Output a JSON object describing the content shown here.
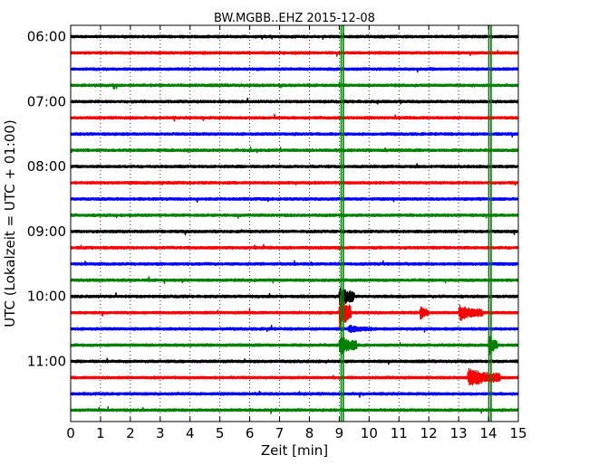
{
  "chart_data": {
    "type": "line",
    "title": "BW.MGBB..EHZ 2015-12-08",
    "xlabel": "Zeit  [min]",
    "ylabel": "UTC (Lokalzeit = UTC + 01:00)",
    "xlim": [
      0,
      15
    ],
    "x_ticks": [
      "0",
      "1",
      "2",
      "3",
      "4",
      "5",
      "6",
      "7",
      "8",
      "9",
      "10",
      "11",
      "12",
      "13",
      "14",
      "15"
    ],
    "y_tick_labels": [
      "06:00",
      "07:00",
      "08:00",
      "09:00",
      "10:00",
      "11:00"
    ],
    "grid": "vertical dotted at each minute",
    "trace_colors": [
      "#000000",
      "#ff0000",
      "#0000ff",
      "#008000"
    ],
    "trace_start_minutes": [
      360,
      375,
      390,
      405,
      420,
      435,
      450,
      465,
      480,
      495,
      510,
      525,
      540,
      555,
      570,
      585,
      600,
      615,
      630,
      645,
      660,
      675,
      690,
      705
    ],
    "trace_duration_min": 15,
    "event_markers": [
      {
        "minute": 9.1,
        "color": "#008000"
      },
      {
        "minute": 14.05,
        "color": "#008000"
      }
    ],
    "signals": [
      {
        "row": 16,
        "x_min": 9.0,
        "x_max": 9.5,
        "peak": 14
      },
      {
        "row": 17,
        "x_min": 9.0,
        "x_max": 9.4,
        "peak": 22
      },
      {
        "row": 17,
        "x_min": 11.7,
        "x_max": 12.0,
        "peak": 9
      },
      {
        "row": 17,
        "x_min": 13.0,
        "x_max": 13.8,
        "peak": 10
      },
      {
        "row": 18,
        "x_min": 9.3,
        "x_max": 10.1,
        "peak": 5
      },
      {
        "row": 19,
        "x_min": 9.0,
        "x_max": 9.6,
        "peak": 12
      },
      {
        "row": 19,
        "x_min": 14.0,
        "x_max": 14.3,
        "peak": 14
      },
      {
        "row": 21,
        "x_min": 13.3,
        "x_max": 14.4,
        "peak": 12
      }
    ]
  }
}
